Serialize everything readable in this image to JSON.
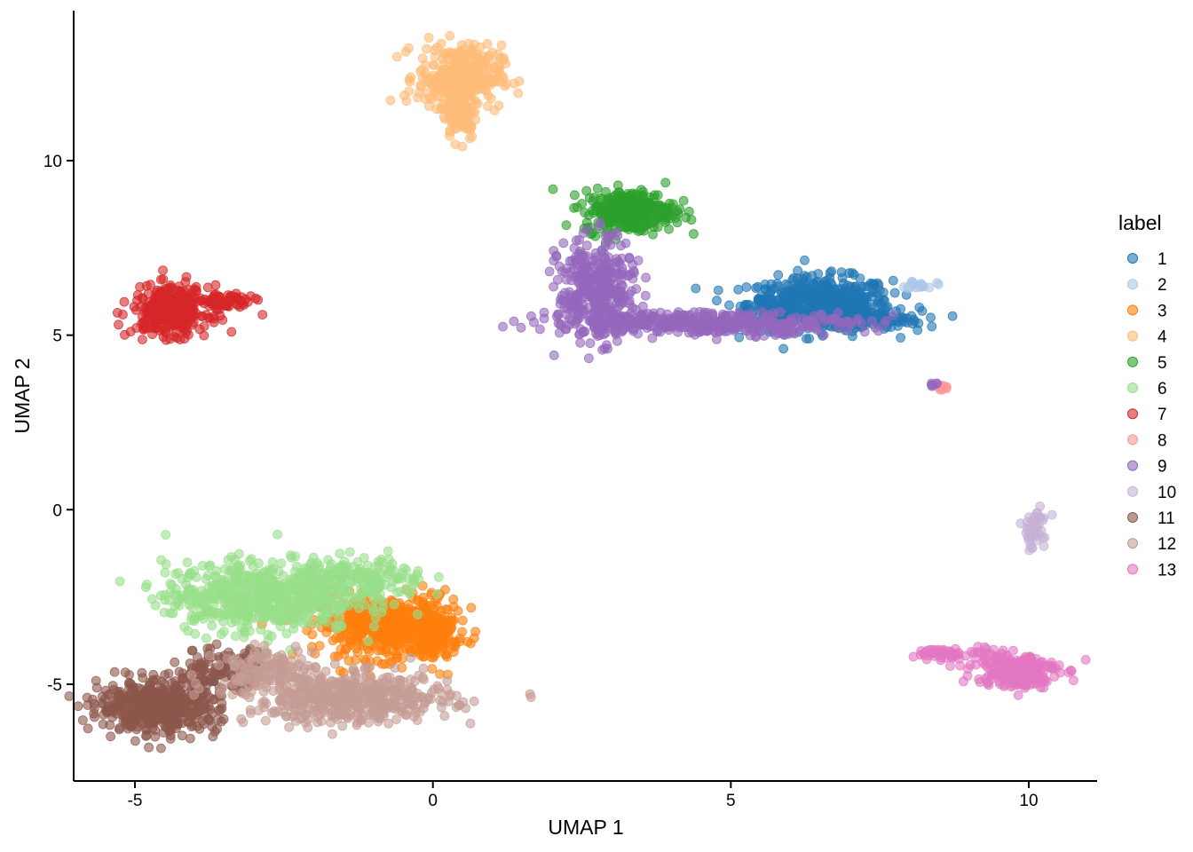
{
  "chart_data": {
    "type": "scatter",
    "xlabel": "UMAP 1",
    "ylabel": "UMAP 2",
    "xlim": [
      -6.0,
      11.2
    ],
    "ylim": [
      -7.7,
      14.2
    ],
    "x_ticks": [
      -5,
      0,
      5,
      10
    ],
    "y_ticks": [
      -5,
      0,
      5,
      10
    ],
    "x_tick_labels": [
      "-5",
      "0",
      "5",
      "10"
    ],
    "y_tick_labels": [
      "-5",
      "0",
      "5",
      "10"
    ],
    "grid": false,
    "legend": {
      "title": "label",
      "placement": "right",
      "entries": [
        "1",
        "2",
        "3",
        "4",
        "5",
        "6",
        "7",
        "8",
        "9",
        "10",
        "11",
        "12",
        "13"
      ]
    },
    "colors": {
      "1": "#1f77b4",
      "2": "#aec7e8",
      "3": "#ff7f0e",
      "4": "#ffbb78",
      "5": "#2ca02c",
      "6": "#98df8a",
      "7": "#d62728",
      "8": "#ff9896",
      "9": "#9467bd",
      "10": "#c5b0d5",
      "11": "#8c564b",
      "12": "#c49c94",
      "13": "#e377c2"
    },
    "series": [
      {
        "name": "1",
        "clusters": [
          {
            "x": 6.5,
            "y": 5.9,
            "sx": 0.6,
            "sy": 0.38,
            "n": 520
          },
          {
            "x": 7.3,
            "y": 5.45,
            "sx": 0.45,
            "sy": 0.12,
            "n": 120
          },
          {
            "x": 5.7,
            "y": 5.8,
            "sx": 0.25,
            "sy": 0.25,
            "n": 60
          }
        ]
      },
      {
        "name": "2",
        "clusters": [
          {
            "x": 8.2,
            "y": 6.45,
            "sx": 0.12,
            "sy": 0.06,
            "n": 18
          }
        ]
      },
      {
        "name": "3",
        "clusters": [
          {
            "x": -0.8,
            "y": -3.35,
            "sx": 0.55,
            "sy": 0.45,
            "n": 520
          },
          {
            "x": 0.05,
            "y": -3.6,
            "sx": 0.18,
            "sy": 0.45,
            "n": 120
          }
        ]
      },
      {
        "name": "4",
        "clusters": [
          {
            "x": 0.45,
            "y": 12.4,
            "sx": 0.35,
            "sy": 0.45,
            "n": 320
          },
          {
            "x": 0.45,
            "y": 11.3,
            "sx": 0.15,
            "sy": 0.35,
            "n": 80
          }
        ]
      },
      {
        "name": "5",
        "clusters": [
          {
            "x": 3.3,
            "y": 8.55,
            "sx": 0.38,
            "sy": 0.3,
            "n": 320
          }
        ]
      },
      {
        "name": "6",
        "clusters": [
          {
            "x": -2.9,
            "y": -2.5,
            "sx": 0.8,
            "sy": 0.5,
            "n": 600
          },
          {
            "x": -1.2,
            "y": -2.0,
            "sx": 0.55,
            "sy": 0.3,
            "n": 180
          }
        ]
      },
      {
        "name": "7",
        "clusters": [
          {
            "x": -4.4,
            "y": 5.7,
            "sx": 0.32,
            "sy": 0.35,
            "n": 320
          },
          {
            "x": -3.5,
            "y": 5.95,
            "sx": 0.25,
            "sy": 0.12,
            "n": 70
          }
        ]
      },
      {
        "name": "8",
        "clusters": [
          {
            "x": 8.55,
            "y": 3.5,
            "sx": 0.06,
            "sy": 0.04,
            "n": 12
          }
        ]
      },
      {
        "name": "9",
        "clusters": [
          {
            "x": 2.75,
            "y": 6.3,
            "sx": 0.32,
            "sy": 0.7,
            "n": 360
          },
          {
            "x": 4.5,
            "y": 5.35,
            "sx": 1.3,
            "sy": 0.16,
            "n": 420
          },
          {
            "x": 8.4,
            "y": 3.6,
            "sx": 0.05,
            "sy": 0.03,
            "n": 6
          }
        ]
      },
      {
        "name": "10",
        "clusters": [
          {
            "x": 10.1,
            "y": -0.55,
            "sx": 0.12,
            "sy": 0.3,
            "n": 40
          }
        ]
      },
      {
        "name": "11",
        "clusters": [
          {
            "x": -4.6,
            "y": -5.65,
            "sx": 0.5,
            "sy": 0.35,
            "n": 520
          },
          {
            "x": -3.6,
            "y": -4.6,
            "sx": 0.4,
            "sy": 0.3,
            "n": 120
          }
        ]
      },
      {
        "name": "12",
        "clusters": [
          {
            "x": -1.4,
            "y": -5.4,
            "sx": 0.85,
            "sy": 0.35,
            "n": 520
          },
          {
            "x": -2.8,
            "y": -4.5,
            "sx": 0.4,
            "sy": 0.25,
            "n": 100
          }
        ]
      },
      {
        "name": "13",
        "clusters": [
          {
            "x": 9.8,
            "y": -4.6,
            "sx": 0.35,
            "sy": 0.25,
            "n": 220
          },
          {
            "x": 8.8,
            "y": -4.15,
            "sx": 0.35,
            "sy": 0.12,
            "n": 60
          }
        ]
      }
    ]
  }
}
